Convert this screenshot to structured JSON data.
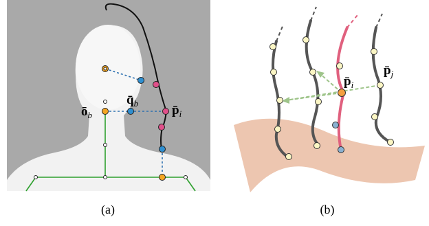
{
  "panels": [
    {
      "caption": "(a)",
      "labels": [
        {
          "base": "ō",
          "sub": "b"
        },
        {
          "base": "q̄",
          "sub": "b"
        },
        {
          "base": "p̄",
          "sub": "i"
        }
      ]
    },
    {
      "caption": "(b)",
      "labels": [
        {
          "base": "p̄",
          "sub": "i"
        },
        {
          "base": "p̄",
          "sub": "j"
        }
      ]
    }
  ]
}
